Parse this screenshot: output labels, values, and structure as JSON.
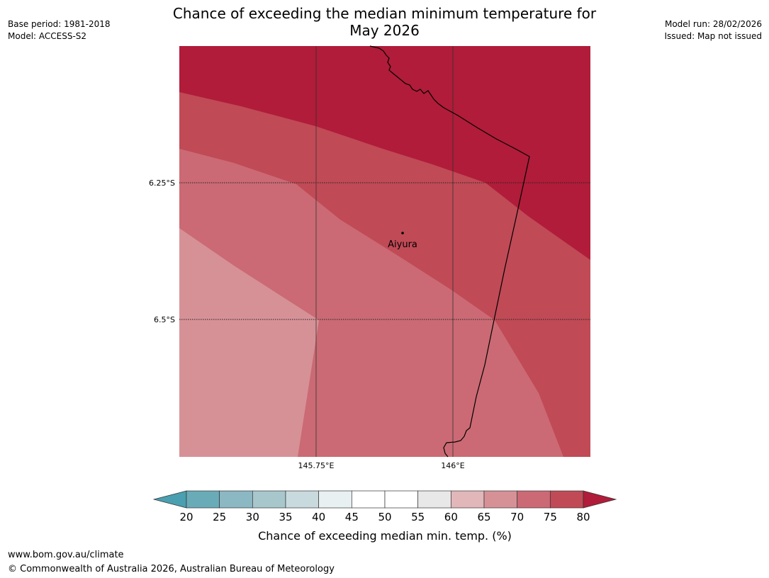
{
  "header": {
    "title_line1": "Chance of exceeding the median minimum temperature for",
    "title_line2": "May 2026",
    "base_period": "Base period: 1981-2018",
    "model": "Model: ACCESS-S2",
    "model_run": "Model run: 28/02/2026",
    "issued": "Issued: Map not issued"
  },
  "map": {
    "lat_labels": [
      "6.25°S",
      "6.5°S"
    ],
    "lon_labels": [
      "145.75°E",
      "146°E"
    ],
    "place_name": "Aiyura",
    "fill_colors": {
      "p80_plus": "#b01c39",
      "p75_80": "#c04a56",
      "p70_75": "#cb6a74",
      "p65_70": "#d69197"
    }
  },
  "legend": {
    "ticks": [
      "20",
      "25",
      "30",
      "35",
      "40",
      "45",
      "50",
      "55",
      "60",
      "65",
      "70",
      "75",
      "80"
    ],
    "colors": [
      "#6aabb8",
      "#8cb8c4",
      "#a8c7cd",
      "#c8dade",
      "#e8f0f2",
      "#ffffff",
      "#ffffff",
      "#e8e8e8",
      "#e1b7ba",
      "#d69197",
      "#cb6a74",
      "#c04a56"
    ],
    "low_extend_color": "#4a9fb0",
    "high_extend_color": "#b01c39",
    "label": "Chance of exceeding median min. temp. (%)"
  },
  "footer": {
    "url": "www.bom.gov.au/climate",
    "copyright": "© Commonwealth of Australia 2026, Australian Bureau of Meteorology"
  }
}
